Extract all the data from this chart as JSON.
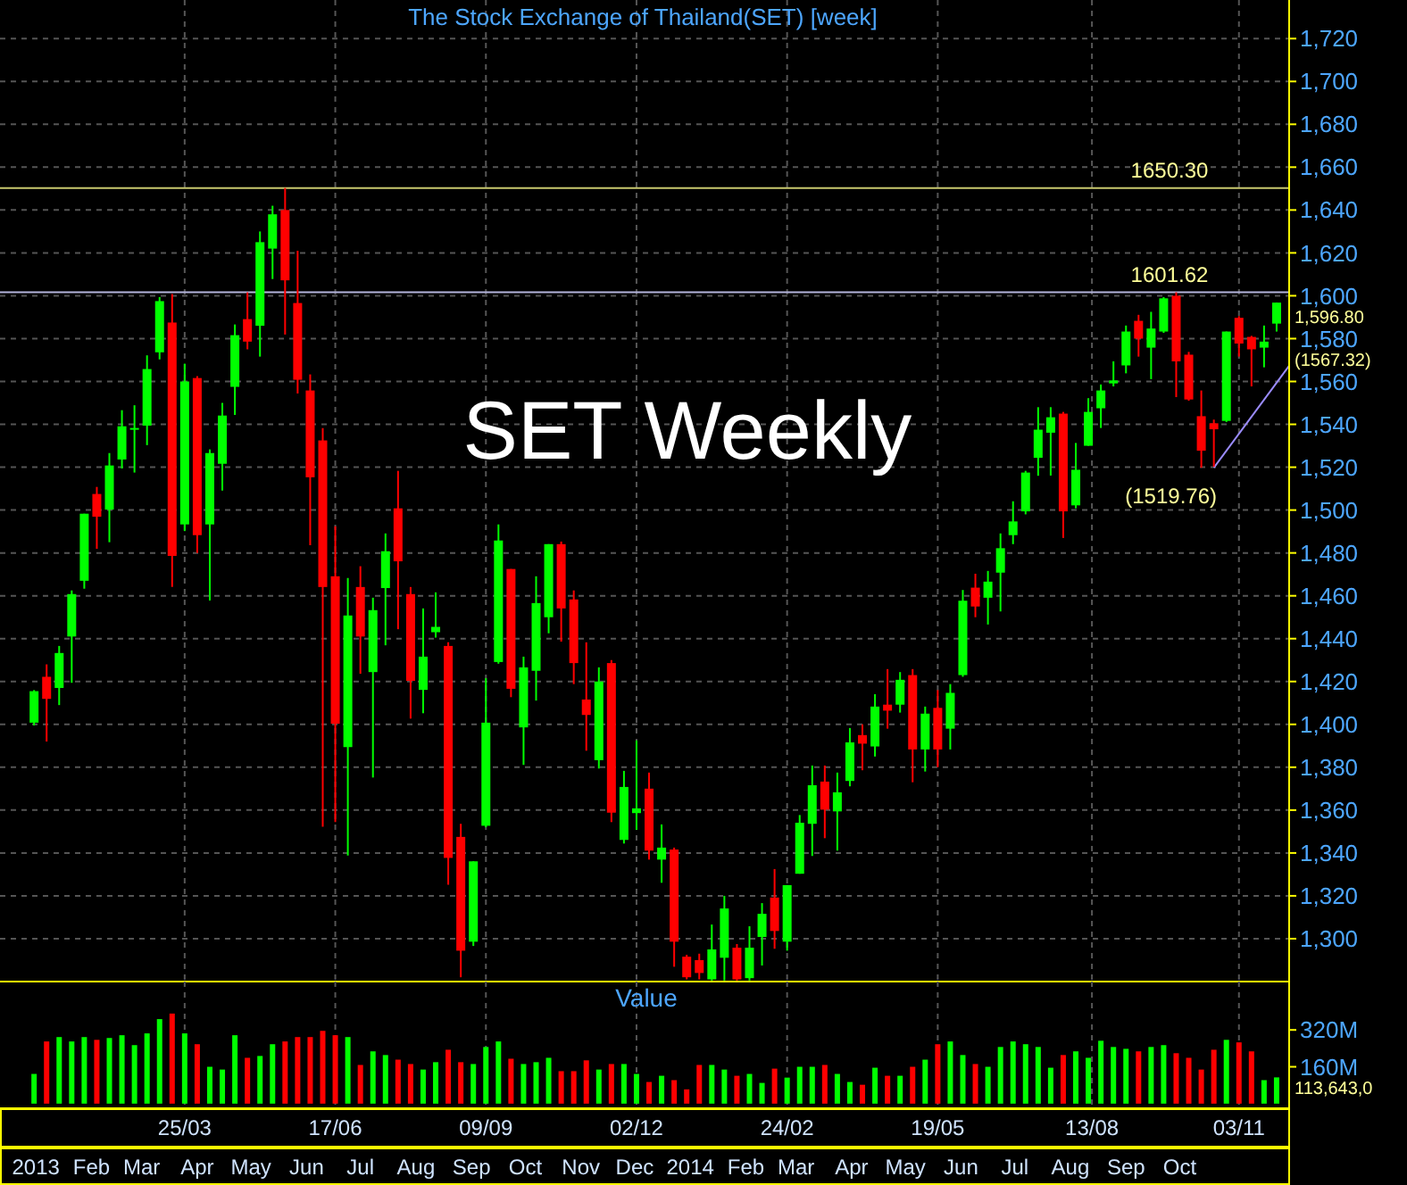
{
  "chart_data": [
    {
      "type": "candlestick",
      "title": "The Stock Exchange of Thailand(SET) [week]",
      "x": [
        "2012-12-31",
        "2013-01-07",
        "2013-01-14",
        "2013-01-21",
        "2013-01-28",
        "2013-02-04",
        "2013-02-11",
        "2013-02-18",
        "2013-02-25",
        "2013-03-04",
        "2013-03-11",
        "2013-03-18",
        "2013-03-25",
        "2013-04-01",
        "2013-04-08",
        "2013-04-15",
        "2013-04-22",
        "2013-04-29",
        "2013-05-06",
        "2013-05-13",
        "2013-05-20",
        "2013-05-27",
        "2013-06-03",
        "2013-06-10",
        "2013-06-17",
        "2013-06-24",
        "2013-07-01",
        "2013-07-08",
        "2013-07-15",
        "2013-07-22",
        "2013-07-29",
        "2013-08-05",
        "2013-08-12",
        "2013-08-19",
        "2013-08-26",
        "2013-09-02",
        "2013-09-09",
        "2013-09-16",
        "2013-09-23",
        "2013-09-30",
        "2013-10-07",
        "2013-10-14",
        "2013-10-21",
        "2013-10-28",
        "2013-11-04",
        "2013-11-11",
        "2013-11-18",
        "2013-11-25",
        "2013-12-02",
        "2013-12-09",
        "2013-12-16",
        "2013-12-23",
        "2013-12-30",
        "2014-01-06",
        "2014-01-13",
        "2014-01-20",
        "2014-01-27",
        "2014-02-03",
        "2014-02-10",
        "2014-02-17",
        "2014-02-24",
        "2014-03-03",
        "2014-03-10",
        "2014-03-17",
        "2014-03-24",
        "2014-03-31",
        "2014-04-07",
        "2014-04-14",
        "2014-04-21",
        "2014-04-28",
        "2014-05-05",
        "2014-05-12",
        "2014-05-19",
        "2014-05-26",
        "2014-06-02",
        "2014-06-09",
        "2014-06-16",
        "2014-06-23",
        "2014-06-30",
        "2014-07-07",
        "2014-07-14",
        "2014-07-21",
        "2014-07-28",
        "2014-08-04",
        "2014-08-11",
        "2014-08-18",
        "2014-08-25",
        "2014-09-01",
        "2014-09-08",
        "2014-09-15",
        "2014-09-22",
        "2014-09-29",
        "2014-10-06",
        "2014-10-13",
        "2014-10-20",
        "2014-10-27",
        "2014-11-03",
        "2014-11-10",
        "2014-11-17",
        "2014-11-24"
      ],
      "ohlc": [
        [
          1400.8,
          1416,
          1399.5,
          1415.5
        ],
        [
          1422.2,
          1428,
          1392,
          1411.9
        ],
        [
          1417,
          1436.6,
          1409,
          1433.3
        ],
        [
          1441,
          1462.5,
          1419.4,
          1460.8
        ],
        [
          1467,
          1498.3,
          1463.3,
          1498.3
        ],
        [
          1507.5,
          1510.8,
          1481.9,
          1496.9
        ],
        [
          1500.2,
          1526.6,
          1485,
          1520.8
        ],
        [
          1523.6,
          1546.6,
          1519.4,
          1539.1
        ],
        [
          1537.9,
          1548.9,
          1517.5,
          1538.3
        ],
        [
          1539.4,
          1572.2,
          1530.3,
          1565.8
        ],
        [
          1573.6,
          1599.4,
          1570.3,
          1597.5
        ],
        [
          1587.5,
          1600.8,
          1464.1,
          1478.6
        ],
        [
          1493.3,
          1568.3,
          1490.2,
          1560
        ],
        [
          1561.6,
          1562.5,
          1480,
          1488.3
        ],
        [
          1493.3,
          1528.3,
          1457.8,
          1526.6
        ],
        [
          1521.6,
          1550,
          1509.1,
          1544.1
        ],
        [
          1557.5,
          1586.6,
          1544.4,
          1581.6
        ],
        [
          1589.1,
          1601.6,
          1575,
          1578.6
        ],
        [
          1586,
          1630,
          1571.6,
          1625
        ],
        [
          1622,
          1642,
          1607.8,
          1638
        ],
        [
          1640,
          1650.3,
          1581.9,
          1607.2
        ],
        [
          1596.6,
          1621,
          1554.4,
          1560.8
        ],
        [
          1555.8,
          1563.3,
          1483.6,
          1515.3
        ],
        [
          1532.5,
          1538.3,
          1352.2,
          1464.1
        ],
        [
          1469.1,
          1492.5,
          1354.4,
          1400.3
        ],
        [
          1389.4,
          1468.3,
          1338.8,
          1450.8
        ],
        [
          1464.1,
          1473.8,
          1423.6,
          1441
        ],
        [
          1424.4,
          1459.1,
          1375.2,
          1453.3
        ],
        [
          1463.6,
          1489.1,
          1436.9,
          1480.8
        ],
        [
          1500.8,
          1518.3,
          1444.4,
          1476.1
        ],
        [
          1460.8,
          1464.1,
          1402.7,
          1420.3
        ],
        [
          1416.1,
          1454.1,
          1405.2,
          1431.6
        ],
        [
          1443,
          1461.6,
          1440.5,
          1445.5
        ],
        [
          1436.6,
          1438.3,
          1325.2,
          1337.7
        ],
        [
          1347.5,
          1353.6,
          1282,
          1294.4
        ],
        [
          1298.6,
          1336.1,
          1296.6,
          1336.1
        ],
        [
          1352.7,
          1421.6,
          1352,
          1400.8
        ],
        [
          1429.1,
          1493.3,
          1428.3,
          1485.8
        ],
        [
          1472.5,
          1472.5,
          1412.7,
          1416.6
        ],
        [
          1398.6,
          1431.6,
          1381.1,
          1426.6
        ],
        [
          1425,
          1469.1,
          1411.1,
          1456.6
        ],
        [
          1450,
          1484.1,
          1442.5,
          1484.1
        ],
        [
          1484.1,
          1485.3,
          1438.6,
          1454.1
        ],
        [
          1458.3,
          1462.5,
          1418.8,
          1428.6
        ],
        [
          1411.6,
          1438.3,
          1387.7,
          1404.4
        ],
        [
          1383.3,
          1426.6,
          1379.4,
          1420
        ],
        [
          1428.6,
          1430,
          1354.4,
          1358.8
        ],
        [
          1346.1,
          1378.3,
          1344.4,
          1370.8
        ],
        [
          1358.6,
          1392.5,
          1350.8,
          1360.8
        ],
        [
          1370,
          1377.5,
          1336.9,
          1341.1
        ],
        [
          1336.9,
          1353.3,
          1326.1,
          1342.5
        ],
        [
          1341.6,
          1342.5,
          1286.9,
          1298.6
        ],
        [
          1291.6,
          1292.5,
          1281,
          1282
        ],
        [
          1290,
          1293,
          1281,
          1284
        ],
        [
          1281,
          1306.6,
          1280.5,
          1295
        ],
        [
          1291.1,
          1320,
          1280.5,
          1314.1
        ],
        [
          1295.8,
          1297.5,
          1280.5,
          1281
        ],
        [
          1281.6,
          1305.8,
          1280.5,
          1295.8
        ],
        [
          1300.8,
          1316.6,
          1287.5,
          1311.6
        ],
        [
          1319.2,
          1332.5,
          1295.3,
          1303.6
        ],
        [
          1298.6,
          1325,
          1294.4,
          1325
        ],
        [
          1330.3,
          1357.7,
          1330.3,
          1354.1
        ],
        [
          1353.6,
          1380.8,
          1338.6,
          1371.6
        ],
        [
          1373.3,
          1380.8,
          1346.9,
          1360.2
        ],
        [
          1359.4,
          1377.5,
          1341.1,
          1368.3
        ],
        [
          1373.6,
          1398.3,
          1371.1,
          1391.6
        ],
        [
          1395,
          1400,
          1378.6,
          1391
        ],
        [
          1389.7,
          1414.1,
          1385,
          1408.3
        ],
        [
          1409.2,
          1425.8,
          1398,
          1406.4
        ],
        [
          1409.2,
          1424.4,
          1405.5,
          1420.8
        ],
        [
          1423,
          1425.8,
          1373,
          1388.3
        ],
        [
          1388.3,
          1408.3,
          1378,
          1405
        ],
        [
          1407.7,
          1416,
          1380,
          1388.3
        ],
        [
          1398,
          1418.8,
          1388.3,
          1414.7
        ],
        [
          1423,
          1462.7,
          1422.2,
          1457.7
        ],
        [
          1463.8,
          1470.3,
          1450,
          1455
        ],
        [
          1459.1,
          1471.6,
          1446.6,
          1466.6
        ],
        [
          1470.8,
          1489.1,
          1452.7,
          1482.2
        ],
        [
          1488.3,
          1504.1,
          1484.1,
          1494.7
        ],
        [
          1499.4,
          1518.3,
          1498,
          1517.5
        ],
        [
          1524.4,
          1548,
          1516,
          1537.5
        ],
        [
          1536.1,
          1548,
          1516.1,
          1543.3
        ],
        [
          1545,
          1545.8,
          1487,
          1499.4
        ],
        [
          1502.2,
          1531.3,
          1500.8,
          1518.8
        ],
        [
          1530,
          1552.2,
          1530,
          1545.8
        ],
        [
          1547.5,
          1558.6,
          1538.3,
          1555.8
        ],
        [
          1559.1,
          1569.4,
          1557.7,
          1560.5
        ],
        [
          1567.5,
          1586.1,
          1563.8,
          1583.3
        ],
        [
          1588.3,
          1591.1,
          1571.6,
          1580
        ],
        [
          1575.8,
          1592.5,
          1561.1,
          1584.7
        ],
        [
          1583.3,
          1599.4,
          1582.7,
          1598.8
        ],
        [
          1600,
          1601.62,
          1552.7,
          1569.4
        ],
        [
          1572.5,
          1573.8,
          1551,
          1551.6
        ],
        [
          1543.8,
          1555.8,
          1519.76,
          1527.7
        ],
        [
          1540.5,
          1542.2,
          1520.2,
          1537.7
        ],
        [
          1541.6,
          1583.3,
          1541.1,
          1583.3
        ],
        [
          1589.7,
          1590.5,
          1571.6,
          1577.7
        ],
        [
          1580.8,
          1581.3,
          1557.7,
          1575
        ],
        [
          1575.8,
          1586.1,
          1566.6,
          1578.6
        ],
        [
          1587,
          1596.8,
          1583.3,
          1596.8
        ]
      ],
      "colors": [
        "#00ff00",
        "#ff0000",
        "#00ff00",
        "#00ff00",
        "#00ff00",
        "#ff0000",
        "#00ff00",
        "#00ff00",
        "#00ff00",
        "#00ff00",
        "#00ff00",
        "#ff0000",
        "#00ff00",
        "#ff0000",
        "#00ff00",
        "#00ff00",
        "#00ff00",
        "#ff0000",
        "#00ff00",
        "#00ff00",
        "#ff0000",
        "#ff0000",
        "#ff0000",
        "#ff0000",
        "#ff0000",
        "#00ff00",
        "#ff0000",
        "#00ff00",
        "#00ff00",
        "#ff0000",
        "#ff0000",
        "#00ff00",
        "#00ff00",
        "#ff0000",
        "#ff0000",
        "#00ff00",
        "#00ff00",
        "#00ff00",
        "#ff0000",
        "#00ff00",
        "#00ff00",
        "#00ff00",
        "#ff0000",
        "#ff0000",
        "#ff0000",
        "#00ff00",
        "#ff0000",
        "#00ff00",
        "#00ff00",
        "#ff0000",
        "#00ff00",
        "#ff0000",
        "#ff0000",
        "#ff0000",
        "#00ff00",
        "#00ff00",
        "#ff0000",
        "#00ff00",
        "#00ff00",
        "#ff0000",
        "#00ff00",
        "#00ff00",
        "#00ff00",
        "#ff0000",
        "#00ff00",
        "#00ff00",
        "#ff0000",
        "#00ff00",
        "#ff0000",
        "#00ff00",
        "#ff0000",
        "#00ff00",
        "#ff0000",
        "#00ff00",
        "#00ff00",
        "#ff0000",
        "#00ff00",
        "#00ff00",
        "#00ff00",
        "#00ff00",
        "#00ff00",
        "#00ff00",
        "#ff0000",
        "#00ff00",
        "#00ff00",
        "#00ff00",
        "#00ff00",
        "#00ff00",
        "#ff0000",
        "#00ff00",
        "#00ff00",
        "#ff0000",
        "#ff0000",
        "#ff0000",
        "#ff0000",
        "#00ff00",
        "#ff0000",
        "#ff0000",
        "#00ff00",
        "#00ff00"
      ],
      "series": [
        {
          "type": "line",
          "x": [
            "2014-10-20",
            "2014-12-01"
          ],
          "values": [
            1519.76,
            1567.32
          ],
          "color": "#9b8cff"
        }
      ],
      "xlim": [
        "2012-12-12",
        "2014-12-01"
      ],
      "xticks": [
        {
          "value": "2013-03-25",
          "label": null
        },
        {
          "value": "2013-06-17",
          "label": null
        },
        {
          "value": "2013-09-09",
          "label": null
        },
        {
          "value": "2013-12-02",
          "label": null
        },
        {
          "value": "2014-02-24",
          "label": null
        },
        {
          "value": "2014-05-19",
          "label": null
        },
        {
          "value": "2014-08-13",
          "label": null
        },
        {
          "value": "2014-11-03",
          "label": null
        }
      ],
      "ylim": [
        1280,
        1738
      ],
      "yticks": [
        {
          "value": 1300,
          "label": "1,300"
        },
        {
          "value": 1320,
          "label": "1,320"
        },
        {
          "value": 1340,
          "label": "1,340"
        },
        {
          "value": 1360,
          "label": "1,360"
        },
        {
          "value": 1380,
          "label": "1,380"
        },
        {
          "value": 1400,
          "label": "1,400"
        },
        {
          "value": 1420,
          "label": "1,420"
        },
        {
          "value": 1440,
          "label": "1,440"
        },
        {
          "value": 1460,
          "label": "1,460"
        },
        {
          "value": 1480,
          "label": "1,480"
        },
        {
          "value": 1500,
          "label": "1,500"
        },
        {
          "value": 1520,
          "label": "1,520"
        },
        {
          "value": 1540,
          "label": "1,540"
        },
        {
          "value": 1560,
          "label": "1,560"
        },
        {
          "value": 1580,
          "label": "1,580"
        },
        {
          "value": 1600,
          "label": "1,600"
        },
        {
          "value": 1620,
          "label": "1,620"
        },
        {
          "value": 1640,
          "label": "1,640"
        },
        {
          "value": 1660,
          "label": "1,660"
        },
        {
          "value": 1680,
          "label": "1,680"
        },
        {
          "value": 1700,
          "label": "1,700"
        },
        {
          "value": 1720,
          "label": "1,720"
        }
      ],
      "ref_lines": [
        {
          "axis": "y",
          "value": 1650.3,
          "label": "1650.30",
          "color": "#c8c86e"
        },
        {
          "axis": "y",
          "value": 1601.62,
          "label": "1601.62",
          "color": "#b4b4dc"
        }
      ],
      "annotations": [
        "1,596.80",
        "(1567.32)",
        "SET Weekly",
        {
          "text": "(1519.76)",
          "x": "2014-10-20",
          "y": 1519.76
        }
      ],
      "grid": true,
      "tick_labels": "y"
    },
    {
      "type": "bar",
      "title": "Value",
      "x": [
        "2012-12-31",
        "2013-01-07",
        "2013-01-14",
        "2013-01-21",
        "2013-01-28",
        "2013-02-04",
        "2013-02-11",
        "2013-02-18",
        "2013-02-25",
        "2013-03-04",
        "2013-03-11",
        "2013-03-18",
        "2013-03-25",
        "2013-04-01",
        "2013-04-08",
        "2013-04-15",
        "2013-04-22",
        "2013-04-29",
        "2013-05-06",
        "2013-05-13",
        "2013-05-20",
        "2013-05-27",
        "2013-06-03",
        "2013-06-10",
        "2013-06-17",
        "2013-06-24",
        "2013-07-01",
        "2013-07-08",
        "2013-07-15",
        "2013-07-22",
        "2013-07-29",
        "2013-08-05",
        "2013-08-12",
        "2013-08-19",
        "2013-08-26",
        "2013-09-02",
        "2013-09-09",
        "2013-09-16",
        "2013-09-23",
        "2013-09-30",
        "2013-10-07",
        "2013-10-14",
        "2013-10-21",
        "2013-10-28",
        "2013-11-04",
        "2013-11-11",
        "2013-11-18",
        "2013-11-25",
        "2013-12-02",
        "2013-12-09",
        "2013-12-16",
        "2013-12-23",
        "2013-12-30",
        "2014-01-06",
        "2014-01-13",
        "2014-01-20",
        "2014-01-27",
        "2014-02-03",
        "2014-02-10",
        "2014-02-17",
        "2014-02-24",
        "2014-03-03",
        "2014-03-10",
        "2014-03-17",
        "2014-03-24",
        "2014-03-31",
        "2014-04-07",
        "2014-04-14",
        "2014-04-21",
        "2014-04-28",
        "2014-05-05",
        "2014-05-12",
        "2014-05-19",
        "2014-05-26",
        "2014-06-02",
        "2014-06-09",
        "2014-06-16",
        "2014-06-23",
        "2014-06-30",
        "2014-07-07",
        "2014-07-14",
        "2014-07-21",
        "2014-07-28",
        "2014-08-04",
        "2014-08-11",
        "2014-08-18",
        "2014-08-25",
        "2014-09-01",
        "2014-09-08",
        "2014-09-15",
        "2014-09-22",
        "2014-09-29",
        "2014-10-06",
        "2014-10-13",
        "2014-10-20",
        "2014-10-27",
        "2014-11-03",
        "2014-11-10",
        "2014-11-17",
        "2014-11-24"
      ],
      "values": [
        129,
        270,
        289,
        270,
        289,
        277,
        285,
        297,
        254,
        305,
        367,
        391,
        305,
        258,
        160,
        148,
        297,
        199,
        207,
        258,
        270,
        289,
        289,
        316,
        297,
        289,
        168,
        227,
        211,
        191,
        172,
        148,
        180,
        234,
        180,
        172,
        246,
        270,
        195,
        172,
        180,
        199,
        141,
        141,
        188,
        148,
        172,
        172,
        129,
        94,
        121,
        102,
        62,
        168,
        168,
        148,
        121,
        129,
        90,
        152,
        113,
        160,
        160,
        168,
        129,
        94,
        82,
        156,
        121,
        121,
        160,
        191,
        258,
        270,
        211,
        172,
        160,
        246,
        270,
        258,
        246,
        156,
        211,
        227,
        199,
        273,
        246,
        238,
        227,
        246,
        254,
        219,
        199,
        148,
        234,
        277,
        266,
        227,
        102,
        114
      ],
      "colors": [
        "#00ff00",
        "#ff0000",
        "#00ff00",
        "#00ff00",
        "#00ff00",
        "#ff0000",
        "#00ff00",
        "#00ff00",
        "#00ff00",
        "#00ff00",
        "#00ff00",
        "#ff0000",
        "#00ff00",
        "#ff0000",
        "#00ff00",
        "#00ff00",
        "#00ff00",
        "#ff0000",
        "#00ff00",
        "#00ff00",
        "#ff0000",
        "#ff0000",
        "#ff0000",
        "#ff0000",
        "#ff0000",
        "#00ff00",
        "#ff0000",
        "#00ff00",
        "#00ff00",
        "#ff0000",
        "#ff0000",
        "#00ff00",
        "#00ff00",
        "#ff0000",
        "#ff0000",
        "#00ff00",
        "#00ff00",
        "#00ff00",
        "#ff0000",
        "#00ff00",
        "#00ff00",
        "#00ff00",
        "#ff0000",
        "#ff0000",
        "#ff0000",
        "#00ff00",
        "#ff0000",
        "#00ff00",
        "#00ff00",
        "#ff0000",
        "#00ff00",
        "#ff0000",
        "#ff0000",
        "#ff0000",
        "#00ff00",
        "#00ff00",
        "#ff0000",
        "#00ff00",
        "#00ff00",
        "#ff0000",
        "#00ff00",
        "#00ff00",
        "#00ff00",
        "#ff0000",
        "#00ff00",
        "#00ff00",
        "#ff0000",
        "#00ff00",
        "#ff0000",
        "#00ff00",
        "#ff0000",
        "#00ff00",
        "#ff0000",
        "#00ff00",
        "#00ff00",
        "#ff0000",
        "#00ff00",
        "#00ff00",
        "#00ff00",
        "#00ff00",
        "#00ff00",
        "#00ff00",
        "#ff0000",
        "#00ff00",
        "#00ff00",
        "#00ff00",
        "#00ff00",
        "#00ff00",
        "#ff0000",
        "#00ff00",
        "#00ff00",
        "#ff0000",
        "#ff0000",
        "#ff0000",
        "#ff0000",
        "#00ff00",
        "#ff0000",
        "#ff0000",
        "#00ff00",
        "#00ff00"
      ],
      "xlim": [
        "2012-12-12",
        "2014-12-01"
      ],
      "xticks": [
        {
          "value": "2013-03-25",
          "label": "25/03"
        },
        {
          "value": "2013-06-17",
          "label": "17/06"
        },
        {
          "value": "2013-09-09",
          "label": "09/09"
        },
        {
          "value": "2013-12-02",
          "label": "02/12"
        },
        {
          "value": "2014-02-24",
          "label": "24/02"
        },
        {
          "value": "2014-05-19",
          "label": "19/05"
        },
        {
          "value": "2014-08-13",
          "label": "13/08"
        },
        {
          "value": "2014-11-03",
          "label": "03/11"
        }
      ],
      "x2lim": [
        "2012-12-12",
        "2014-12-01"
      ],
      "x2ticks": [
        {
          "value": "2013-01-01",
          "label": "2013"
        },
        {
          "value": "2013-02-01",
          "label": "Feb"
        },
        {
          "value": "2013-03-01",
          "label": "Mar"
        },
        {
          "value": "2013-04-01",
          "label": "Apr"
        },
        {
          "value": "2013-05-01",
          "label": "May"
        },
        {
          "value": "2013-06-01",
          "label": "Jun"
        },
        {
          "value": "2013-07-01",
          "label": "Jul"
        },
        {
          "value": "2013-08-01",
          "label": "Aug"
        },
        {
          "value": "2013-09-01",
          "label": "Sep"
        },
        {
          "value": "2013-10-01",
          "label": "Oct"
        },
        {
          "value": "2013-11-01",
          "label": "Nov"
        },
        {
          "value": "2013-12-01",
          "label": "Dec"
        },
        {
          "value": "2014-01-01",
          "label": "2014"
        },
        {
          "value": "2014-02-01",
          "label": "Feb"
        },
        {
          "value": "2014-03-01",
          "label": "Mar"
        },
        {
          "value": "2014-04-01",
          "label": "Apr"
        },
        {
          "value": "2014-05-01",
          "label": "May"
        },
        {
          "value": "2014-06-01",
          "label": "Jun"
        },
        {
          "value": "2014-07-01",
          "label": "Jul"
        },
        {
          "value": "2014-08-01",
          "label": "Aug"
        },
        {
          "value": "2014-09-01",
          "label": "Sep"
        },
        {
          "value": "2014-10-01",
          "label": "Oct"
        }
      ],
      "ylim": [
        -20,
        530
      ],
      "yticks": [
        {
          "value": 160,
          "label": "160M"
        },
        {
          "value": 320,
          "label": "320M"
        }
      ],
      "annotations": [
        "113,643,0"
      ],
      "grid": "x"
    }
  ]
}
